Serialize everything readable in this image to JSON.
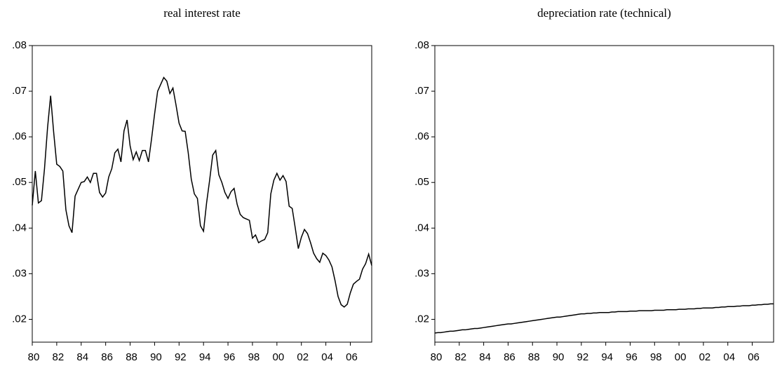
{
  "chart_data": [
    {
      "type": "line",
      "title": "real interest rate",
      "categories": [
        "80",
        null,
        null,
        null,
        null,
        null,
        null,
        null,
        "82",
        null,
        null,
        null,
        null,
        null,
        null,
        null,
        "84",
        null,
        null,
        null,
        null,
        null,
        null,
        null,
        "86",
        null,
        null,
        null,
        null,
        null,
        null,
        null,
        "88",
        null,
        null,
        null,
        null,
        null,
        null,
        null,
        "90",
        null,
        null,
        null,
        null,
        null,
        null,
        null,
        "92",
        null,
        null,
        null,
        null,
        null,
        null,
        null,
        "94",
        null,
        null,
        null,
        null,
        null,
        null,
        null,
        "96",
        null,
        null,
        null,
        null,
        null,
        null,
        null,
        "98",
        null,
        null,
        null,
        null,
        null,
        null,
        null,
        "00",
        null,
        null,
        null,
        null,
        null,
        null,
        null,
        "02",
        null,
        null,
        null,
        null,
        null,
        null,
        null,
        "04",
        null,
        null,
        null,
        null,
        null,
        null,
        null,
        "06",
        null,
        null,
        null,
        null,
        null,
        null,
        null
      ],
      "values": [
        0.045,
        0.0525,
        0.0455,
        0.046,
        0.053,
        0.062,
        0.069,
        0.061,
        0.054,
        0.0535,
        0.0525,
        0.044,
        0.0405,
        0.039,
        0.047,
        0.0485,
        0.05,
        0.0502,
        0.0512,
        0.05,
        0.052,
        0.052,
        0.0478,
        0.0468,
        0.0477,
        0.0512,
        0.053,
        0.0565,
        0.0573,
        0.0545,
        0.0613,
        0.0637,
        0.058,
        0.055,
        0.0567,
        0.0548,
        0.057,
        0.057,
        0.0545,
        0.0595,
        0.065,
        0.07,
        0.0715,
        0.073,
        0.0722,
        0.0695,
        0.0707,
        0.067,
        0.063,
        0.0613,
        0.0612,
        0.0565,
        0.0507,
        0.0475,
        0.0465,
        0.0405,
        0.0393,
        0.0455,
        0.0505,
        0.056,
        0.057,
        0.0517,
        0.05,
        0.0478,
        0.0465,
        0.048,
        0.0487,
        0.0452,
        0.043,
        0.0423,
        0.042,
        0.0417,
        0.0378,
        0.0385,
        0.0368,
        0.0372,
        0.0375,
        0.039,
        0.0475,
        0.0505,
        0.052,
        0.0505,
        0.0515,
        0.0502,
        0.0448,
        0.0443,
        0.04,
        0.0355,
        0.038,
        0.0397,
        0.0388,
        0.0368,
        0.0345,
        0.0333,
        0.0325,
        0.0345,
        0.034,
        0.033,
        0.0315,
        0.0285,
        0.025,
        0.0232,
        0.0227,
        0.0233,
        0.0258,
        0.0277,
        0.0283,
        0.0288,
        0.031,
        0.0322,
        0.0343,
        0.0318
      ],
      "color": "#000000",
      "ylim": [
        0.015,
        0.08
      ],
      "yticks": [
        {
          "value": 0.02,
          "label": ".02"
        },
        {
          "value": 0.03,
          "label": ".03"
        },
        {
          "value": 0.04,
          "label": ".04"
        },
        {
          "value": 0.05,
          "label": ".05"
        },
        {
          "value": 0.06,
          "label": ".06"
        },
        {
          "value": 0.07,
          "label": ".07"
        },
        {
          "value": 0.08,
          "label": ".08"
        }
      ]
    },
    {
      "type": "line",
      "title": "depreciation rate (technical)",
      "categories": [
        "80",
        null,
        null,
        null,
        null,
        null,
        null,
        null,
        "82",
        null,
        null,
        null,
        null,
        null,
        null,
        null,
        "84",
        null,
        null,
        null,
        null,
        null,
        null,
        null,
        "86",
        null,
        null,
        null,
        null,
        null,
        null,
        null,
        "88",
        null,
        null,
        null,
        null,
        null,
        null,
        null,
        "90",
        null,
        null,
        null,
        null,
        null,
        null,
        null,
        "92",
        null,
        null,
        null,
        null,
        null,
        null,
        null,
        "94",
        null,
        null,
        null,
        null,
        null,
        null,
        null,
        "96",
        null,
        null,
        null,
        null,
        null,
        null,
        null,
        "98",
        null,
        null,
        null,
        null,
        null,
        null,
        null,
        "00",
        null,
        null,
        null,
        null,
        null,
        null,
        null,
        "02",
        null,
        null,
        null,
        null,
        null,
        null,
        null,
        "04",
        null,
        null,
        null,
        null,
        null,
        null,
        null,
        "06",
        null,
        null,
        null,
        null,
        null,
        null,
        null
      ],
      "values": [
        0.017,
        0.0171,
        0.0171,
        0.0172,
        0.0173,
        0.0174,
        0.0174,
        0.0175,
        0.0176,
        0.0177,
        0.0177,
        0.0178,
        0.0179,
        0.018,
        0.018,
        0.0181,
        0.0182,
        0.0183,
        0.0184,
        0.0185,
        0.0186,
        0.0187,
        0.0188,
        0.0189,
        0.019,
        0.019,
        0.0191,
        0.0192,
        0.0193,
        0.0194,
        0.0195,
        0.0196,
        0.0197,
        0.0198,
        0.0199,
        0.02,
        0.0201,
        0.0202,
        0.0203,
        0.0204,
        0.0205,
        0.0205,
        0.0206,
        0.0207,
        0.0208,
        0.0209,
        0.021,
        0.0211,
        0.0212,
        0.0212,
        0.0213,
        0.0213,
        0.0214,
        0.0214,
        0.0215,
        0.0215,
        0.0215,
        0.0215,
        0.0216,
        0.0216,
        0.0217,
        0.0217,
        0.0217,
        0.0217,
        0.0218,
        0.0218,
        0.0218,
        0.0219,
        0.0219,
        0.0219,
        0.0219,
        0.0219,
        0.022,
        0.022,
        0.022,
        0.022,
        0.0221,
        0.0221,
        0.0221,
        0.0221,
        0.0222,
        0.0222,
        0.0222,
        0.0223,
        0.0223,
        0.0223,
        0.0224,
        0.0224,
        0.0225,
        0.0225,
        0.0225,
        0.0225,
        0.0226,
        0.0226,
        0.0227,
        0.0227,
        0.0228,
        0.0228,
        0.0228,
        0.0229,
        0.0229,
        0.023,
        0.023,
        0.023,
        0.0231,
        0.0231,
        0.0232,
        0.0232,
        0.0233,
        0.0233,
        0.0234,
        0.0234
      ],
      "color": "#000000",
      "ylim": [
        0.015,
        0.08
      ],
      "yticks": [
        {
          "value": 0.02,
          "label": ".02"
        },
        {
          "value": 0.03,
          "label": ".03"
        },
        {
          "value": 0.04,
          "label": ".04"
        },
        {
          "value": 0.05,
          "label": ".05"
        },
        {
          "value": 0.06,
          "label": ".06"
        },
        {
          "value": 0.07,
          "label": ".07"
        },
        {
          "value": 0.08,
          "label": ".08"
        }
      ]
    }
  ]
}
